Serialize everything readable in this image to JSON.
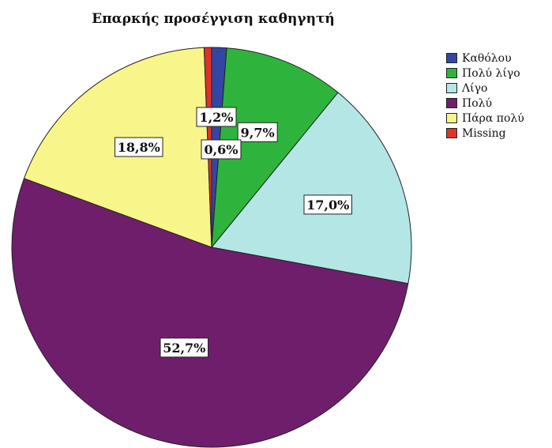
{
  "chart_data": {
    "type": "pie",
    "title": "Επαρκής προσέγγιση καθηγητή",
    "legend_position": "right",
    "categories": [
      "Καθόλου",
      "Πολύ λίγο",
      "Λίγο",
      "Πολύ",
      "Πάρα πολύ",
      "Missing"
    ],
    "values": [
      1.2,
      9.7,
      17.0,
      52.7,
      18.8,
      0.6
    ],
    "labels": [
      "1,2%",
      "9,7%",
      "17,0%",
      "52,7%",
      "18,8%",
      "0,6%"
    ],
    "colors": [
      "#3446a3",
      "#2eb43c",
      "#b4e6e6",
      "#6f1e6b",
      "#f8f58a",
      "#e0312b"
    ]
  }
}
